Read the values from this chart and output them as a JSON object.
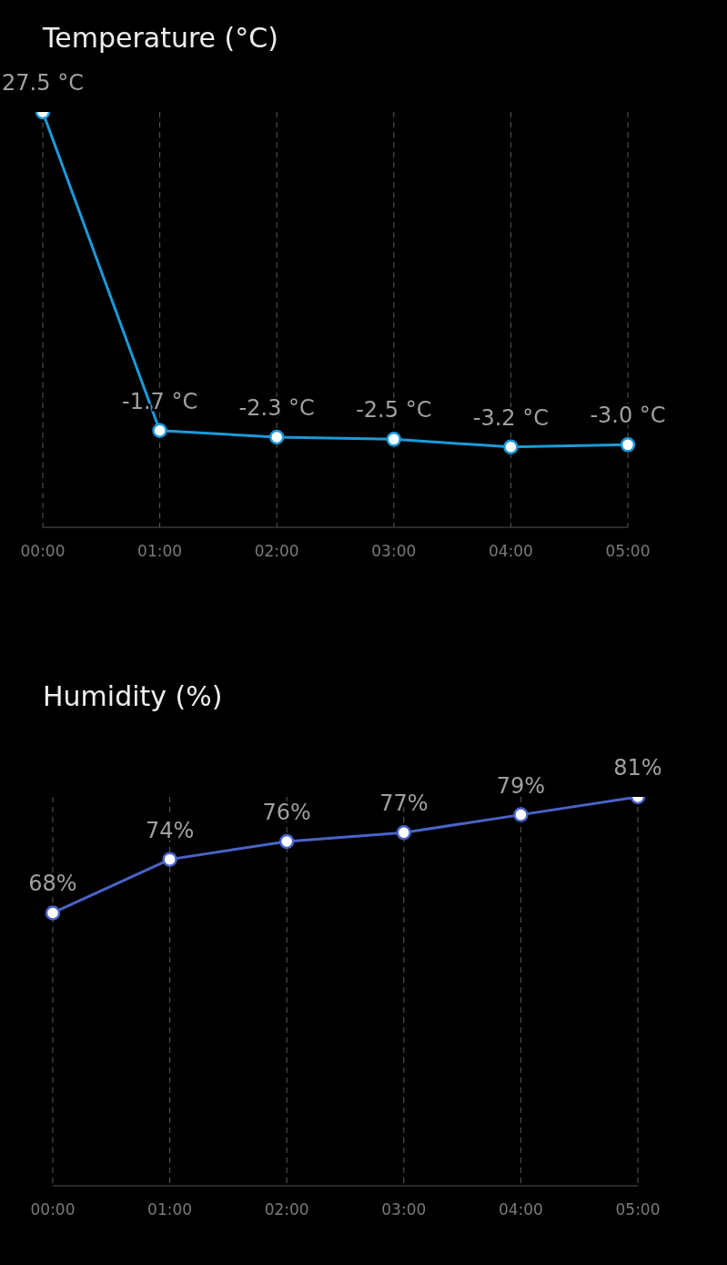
{
  "chart_data": [
    {
      "type": "line",
      "title": "Temperature (°C)",
      "categories": [
        "00:00",
        "01:00",
        "02:00",
        "03:00",
        "04:00",
        "05:00"
      ],
      "values": [
        27.5,
        -1.7,
        -2.3,
        -2.5,
        -3.2,
        -3.0
      ],
      "value_labels": [
        "27.5 °C",
        "-1.7 °C",
        "-2.3 °C",
        "-2.5 °C",
        "-3.2 °C",
        "-3.0 °C"
      ],
      "color": "#1b9ad8",
      "grid": "x",
      "marker": "circle",
      "line_style": "solid"
    },
    {
      "type": "line",
      "title": "Humidity (%)",
      "categories": [
        "00:00",
        "01:00",
        "02:00",
        "03:00",
        "04:00",
        "05:00"
      ],
      "values": [
        68,
        74,
        76,
        77,
        79,
        81
      ],
      "value_labels": [
        "68%",
        "74%",
        "76%",
        "77%",
        "79%",
        "81%"
      ],
      "color": "#4a63c8",
      "grid": "x",
      "marker": "circle",
      "line_style": "solid"
    }
  ]
}
